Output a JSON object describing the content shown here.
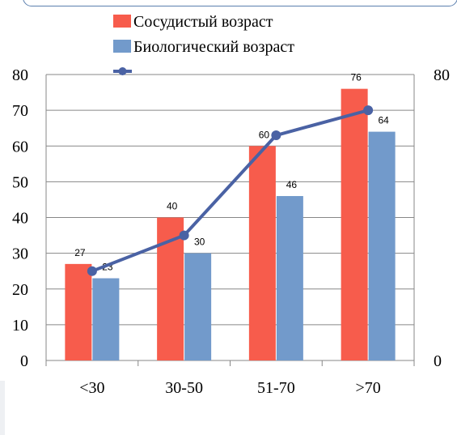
{
  "chart_data": {
    "type": "bar",
    "categories": [
      "<30",
      "30-50",
      "51-70",
      ">70"
    ],
    "series": [
      {
        "name": "Сосудистый возраст",
        "type": "bar",
        "color": "#f75c4c",
        "values": [
          27,
          40,
          60,
          76
        ]
      },
      {
        "name": "Биологический возраст",
        "type": "bar",
        "color": "#729acb",
        "values": [
          23,
          30,
          46,
          64
        ]
      },
      {
        "name": "",
        "type": "line",
        "axis": "secondary",
        "color": "#4a62a4",
        "values": [
          25,
          35,
          63,
          70
        ]
      }
    ],
    "ylim": [
      0,
      80
    ],
    "yticks": [
      0,
      10,
      20,
      30,
      40,
      50,
      60,
      70,
      80
    ],
    "y2lim": [
      0,
      80
    ],
    "y2ticks": [
      0,
      80
    ],
    "grid": true,
    "legend": "top",
    "title": "",
    "xlabel": "",
    "ylabel": ""
  }
}
